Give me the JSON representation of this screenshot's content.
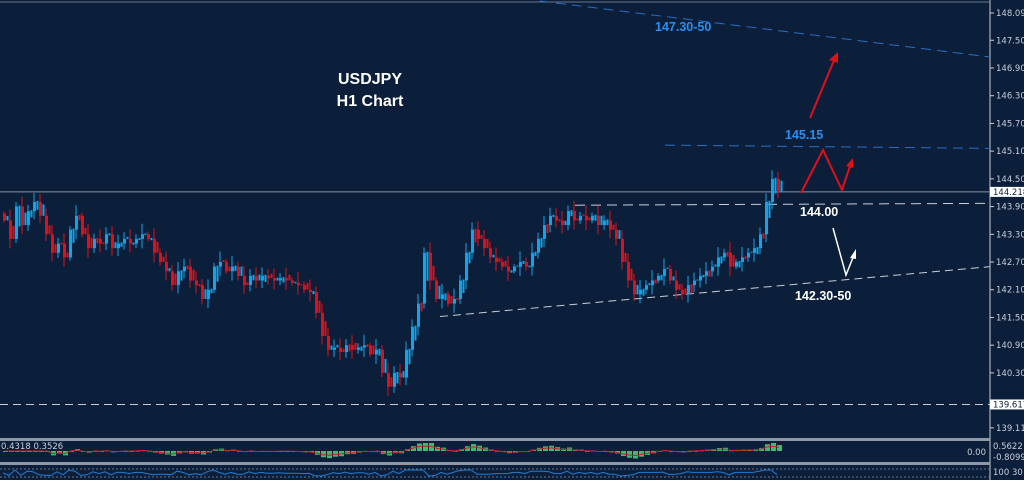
{
  "chart_data": {
    "type": "candlestick",
    "title": "USDJPY",
    "subtitle": "H1 Chart",
    "ylim": [
      138.7,
      148.35
    ],
    "y_ticks": [
      "148.090",
      "147.500",
      "146.900",
      "146.300",
      "145.700",
      "145.100",
      "144.500",
      "143.900",
      "143.300",
      "142.700",
      "142.100",
      "141.500",
      "140.900",
      "140.300",
      "139.110"
    ],
    "current_price": "144.218",
    "marked_level": "139.617",
    "closes": [
      143.6,
      143.2,
      143.9,
      143.5,
      143.8,
      144.0,
      143.7,
      143.3,
      142.9,
      143.1,
      142.8,
      143.4,
      143.7,
      143.3,
      143.0,
      143.2,
      143.1,
      143.3,
      143.0,
      143.1,
      143.2,
      143.1,
      143.2,
      143.3,
      143.2,
      142.9,
      142.7,
      142.5,
      142.2,
      142.5,
      142.6,
      142.3,
      142.2,
      141.9,
      142.1,
      142.6,
      142.7,
      142.5,
      142.6,
      142.4,
      142.2,
      142.4,
      142.3,
      142.4,
      142.35,
      142.3,
      142.35,
      142.3,
      142.25,
      142.2,
      142.1,
      142.05,
      141.6,
      141.1,
      140.8,
      140.85,
      140.75,
      140.9,
      140.8,
      140.85,
      140.9,
      140.7,
      140.8,
      140.3,
      140.0,
      140.3,
      140.2,
      140.8,
      141.3,
      141.8,
      142.9,
      142.3,
      141.9,
      142.0,
      141.8,
      141.9,
      142.3,
      142.9,
      143.4,
      143.2,
      143.0,
      142.8,
      142.7,
      142.6,
      142.5,
      142.6,
      142.7,
      142.6,
      142.9,
      143.2,
      143.5,
      143.7,
      143.6,
      143.5,
      143.8,
      143.6,
      143.7,
      143.6,
      143.7,
      143.5,
      143.6,
      143.4,
      143.2,
      142.7,
      142.3,
      142.0,
      142.1,
      142.2,
      142.3,
      142.4,
      142.55,
      142.3,
      142.1,
      142.0,
      142.2,
      142.3,
      142.4,
      142.5,
      142.6,
      142.8,
      142.9,
      142.6,
      142.7,
      142.8,
      142.9,
      143.0,
      143.3,
      144.0,
      144.5,
      144.22
    ],
    "annotations": {
      "target_high": "147.30-50",
      "resistance": "145.15",
      "support": "144.00",
      "trend_support": "142.30-50"
    },
    "colors": {
      "background": "#0b1f3b",
      "bull": "#12a4e8",
      "bear": "#e0101a",
      "axis_text": "#c9ced6",
      "blue_level": "#2a8fef"
    },
    "indicators": {
      "macd": {
        "label": "0.4318 0.3526",
        "ticks": [
          "0.5622",
          "0.00",
          "-0.8099"
        ]
      },
      "oscillator": {
        "ticks": [
          "100",
          "30"
        ]
      }
    }
  }
}
